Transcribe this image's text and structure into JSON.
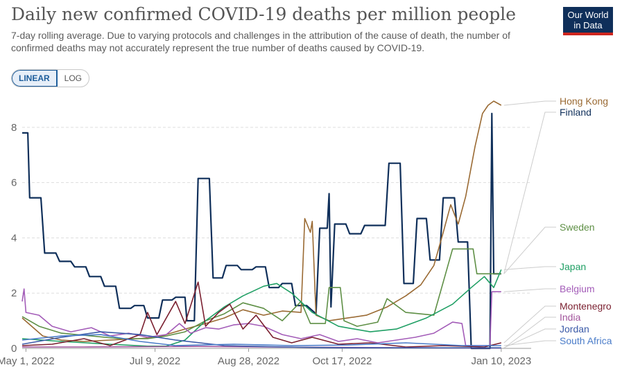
{
  "header": {
    "title": "Daily new confirmed COVID-19 deaths per million people",
    "subtitle": "7-day rolling average. Due to varying protocols and challenges in the attribution of the cause of death, the number of confirmed deaths may not accurately represent the true number of deaths caused by COVID-19.",
    "logo_line1": "Our World",
    "logo_line2": "in Data"
  },
  "scale_toggle": {
    "linear": "LINEAR",
    "log": "LOG",
    "selected": "linear"
  },
  "chart_data": {
    "type": "line",
    "title": "Daily new confirmed COVID-19 deaths per million people",
    "x_axis": {
      "type": "date",
      "range": [
        "2022-04-29",
        "2023-01-26"
      ],
      "ticks": [
        {
          "date": "2022-05-01",
          "label": "May 1, 2022"
        },
        {
          "date": "2022-07-09",
          "label": "Jul 9, 2022"
        },
        {
          "date": "2022-08-28",
          "label": "Aug 28, 2022"
        },
        {
          "date": "2022-10-17",
          "label": "Oct 17, 2022"
        },
        {
          "date": "2023-01-10",
          "label": "Jan 10, 2023"
        }
      ]
    },
    "y_axis": {
      "range": [
        0,
        9
      ],
      "ticks": [
        0,
        2,
        4,
        6,
        8
      ],
      "scale": "linear",
      "grid": true
    },
    "legend_placement": "right",
    "series": [
      {
        "name": "Finland",
        "color": "#0f2f5a",
        "points": [
          [
            "2022-04-29",
            7.8
          ],
          [
            "2022-05-02",
            7.8
          ],
          [
            "2022-05-03",
            5.45
          ],
          [
            "2022-05-09",
            5.45
          ],
          [
            "2022-05-11",
            3.45
          ],
          [
            "2022-05-17",
            3.45
          ],
          [
            "2022-05-19",
            3.15
          ],
          [
            "2022-05-25",
            3.15
          ],
          [
            "2022-05-27",
            2.95
          ],
          [
            "2022-06-02",
            2.95
          ],
          [
            "2022-06-04",
            2.6
          ],
          [
            "2022-06-10",
            2.6
          ],
          [
            "2022-06-12",
            2.25
          ],
          [
            "2022-06-18",
            2.25
          ],
          [
            "2022-06-20",
            1.45
          ],
          [
            "2022-06-26",
            1.45
          ],
          [
            "2022-06-28",
            1.55
          ],
          [
            "2022-07-03",
            1.55
          ],
          [
            "2022-07-05",
            1.1
          ],
          [
            "2022-07-11",
            1.1
          ],
          [
            "2022-07-13",
            1.75
          ],
          [
            "2022-07-18",
            1.75
          ],
          [
            "2022-07-20",
            1.85
          ],
          [
            "2022-07-25",
            1.85
          ],
          [
            "2022-07-26",
            1.0
          ],
          [
            "2022-07-30",
            1.0
          ],
          [
            "2022-08-01",
            6.15
          ],
          [
            "2022-08-07",
            6.15
          ],
          [
            "2022-08-09",
            2.55
          ],
          [
            "2022-08-14",
            2.55
          ],
          [
            "2022-08-16",
            3.0
          ],
          [
            "2022-08-22",
            3.0
          ],
          [
            "2022-08-24",
            2.85
          ],
          [
            "2022-08-30",
            2.85
          ],
          [
            "2022-09-01",
            2.95
          ],
          [
            "2022-09-06",
            2.95
          ],
          [
            "2022-09-08",
            2.2
          ],
          [
            "2022-09-13",
            2.2
          ],
          [
            "2022-09-15",
            2.35
          ],
          [
            "2022-09-20",
            2.35
          ],
          [
            "2022-09-22",
            1.55
          ],
          [
            "2022-09-26",
            1.55
          ],
          [
            "2022-09-28",
            1.55
          ],
          [
            "2022-10-03",
            1.25
          ],
          [
            "2022-10-05",
            4.35
          ],
          [
            "2022-10-09",
            4.35
          ],
          [
            "2022-10-10",
            5.6
          ],
          [
            "2022-10-11",
            1.5
          ],
          [
            "2022-10-13",
            4.5
          ],
          [
            "2022-10-19",
            4.5
          ],
          [
            "2022-10-21",
            4.15
          ],
          [
            "2022-10-27",
            4.15
          ],
          [
            "2022-10-29",
            4.45
          ],
          [
            "2022-11-09",
            4.45
          ],
          [
            "2022-11-11",
            6.7
          ],
          [
            "2022-11-17",
            6.7
          ],
          [
            "2022-11-19",
            2.35
          ],
          [
            "2022-11-24",
            2.35
          ],
          [
            "2022-11-26",
            4.7
          ],
          [
            "2022-12-01",
            4.7
          ],
          [
            "2022-12-03",
            3.2
          ],
          [
            "2022-12-08",
            3.2
          ],
          [
            "2022-12-10",
            5.45
          ],
          [
            "2022-12-16",
            5.45
          ],
          [
            "2022-12-18",
            3.85
          ],
          [
            "2022-12-23",
            3.85
          ],
          [
            "2022-12-25",
            0
          ],
          [
            "2023-01-04",
            0
          ],
          [
            "2023-01-05",
            8.5
          ],
          [
            "2023-01-06",
            2.7
          ],
          [
            "2023-01-10",
            2.7
          ]
        ]
      },
      {
        "name": "Hong Kong",
        "color": "#9a6a33",
        "points": [
          [
            "2022-04-29",
            1.1
          ],
          [
            "2022-05-10",
            0.45
          ],
          [
            "2022-05-20",
            0.3
          ],
          [
            "2022-06-01",
            0.25
          ],
          [
            "2022-06-15",
            0.3
          ],
          [
            "2022-06-30",
            0.35
          ],
          [
            "2022-07-10",
            0.4
          ],
          [
            "2022-07-25",
            0.7
          ],
          [
            "2022-08-05",
            0.9
          ],
          [
            "2022-08-15",
            1.1
          ],
          [
            "2022-08-25",
            1.4
          ],
          [
            "2022-09-05",
            1.2
          ],
          [
            "2022-09-15",
            1.35
          ],
          [
            "2022-09-25",
            1.3
          ],
          [
            "2022-09-27",
            4.7
          ],
          [
            "2022-09-30",
            4.2
          ],
          [
            "2022-10-01",
            4.6
          ],
          [
            "2022-10-03",
            1.2
          ],
          [
            "2022-10-10",
            1.0
          ],
          [
            "2022-10-20",
            1.1
          ],
          [
            "2022-10-30",
            1.2
          ],
          [
            "2022-11-10",
            1.5
          ],
          [
            "2022-11-20",
            1.9
          ],
          [
            "2022-11-28",
            2.3
          ],
          [
            "2022-12-05",
            3.0
          ],
          [
            "2022-12-10",
            4.2
          ],
          [
            "2022-12-14",
            5.2
          ],
          [
            "2022-12-18",
            4.5
          ],
          [
            "2022-12-22",
            5.5
          ],
          [
            "2022-12-27",
            7.3
          ],
          [
            "2022-12-31",
            8.5
          ],
          [
            "2023-01-03",
            8.8
          ],
          [
            "2023-01-06",
            8.95
          ],
          [
            "2023-01-10",
            8.8
          ]
        ]
      },
      {
        "name": "Sweden",
        "color": "#5e8f45",
        "points": [
          [
            "2022-04-29",
            1.15
          ],
          [
            "2022-05-08",
            0.8
          ],
          [
            "2022-05-20",
            0.55
          ],
          [
            "2022-06-05",
            0.45
          ],
          [
            "2022-06-20",
            0.35
          ],
          [
            "2022-07-05",
            0.35
          ],
          [
            "2022-07-15",
            0.45
          ],
          [
            "2022-07-25",
            0.6
          ],
          [
            "2022-08-05",
            1.0
          ],
          [
            "2022-08-15",
            1.25
          ],
          [
            "2022-08-25",
            1.65
          ],
          [
            "2022-09-05",
            1.45
          ],
          [
            "2022-09-15",
            1.0
          ],
          [
            "2022-09-25",
            1.7
          ],
          [
            "2022-09-30",
            0.9
          ],
          [
            "2022-10-08",
            0.9
          ],
          [
            "2022-10-10",
            2.2
          ],
          [
            "2022-10-16",
            2.2
          ],
          [
            "2022-10-18",
            1.0
          ],
          [
            "2022-10-25",
            0.8
          ],
          [
            "2022-11-05",
            0.95
          ],
          [
            "2022-11-10",
            1.8
          ],
          [
            "2022-11-20",
            1.3
          ],
          [
            "2022-12-05",
            1.2
          ],
          [
            "2022-12-15",
            3.6
          ],
          [
            "2022-12-26",
            3.6
          ],
          [
            "2022-12-28",
            2.7
          ],
          [
            "2023-01-10",
            2.7
          ]
        ]
      },
      {
        "name": "Japan",
        "color": "#1f9f64",
        "points": [
          [
            "2022-04-29",
            0.35
          ],
          [
            "2022-05-20",
            0.25
          ],
          [
            "2022-06-15",
            0.15
          ],
          [
            "2022-07-05",
            0.08
          ],
          [
            "2022-07-15",
            0.08
          ],
          [
            "2022-07-25",
            0.3
          ],
          [
            "2022-08-05",
            1.0
          ],
          [
            "2022-08-15",
            1.5
          ],
          [
            "2022-08-25",
            1.9
          ],
          [
            "2022-09-05",
            2.25
          ],
          [
            "2022-09-12",
            2.35
          ],
          [
            "2022-09-20",
            2.0
          ],
          [
            "2022-10-01",
            1.3
          ],
          [
            "2022-10-15",
            0.8
          ],
          [
            "2022-11-01",
            0.6
          ],
          [
            "2022-11-15",
            0.7
          ],
          [
            "2022-12-01",
            1.1
          ],
          [
            "2022-12-15",
            1.6
          ],
          [
            "2022-12-25",
            2.2
          ],
          [
            "2023-01-01",
            2.6
          ],
          [
            "2023-01-06",
            2.2
          ],
          [
            "2023-01-10",
            2.85
          ]
        ]
      },
      {
        "name": "Belgium",
        "color": "#a35cb8",
        "points": [
          [
            "2022-04-29",
            1.7
          ],
          [
            "2022-04-30",
            2.15
          ],
          [
            "2022-05-01",
            1.3
          ],
          [
            "2022-05-08",
            1.2
          ],
          [
            "2022-05-15",
            0.8
          ],
          [
            "2022-05-25",
            0.6
          ],
          [
            "2022-06-05",
            0.75
          ],
          [
            "2022-06-15",
            0.45
          ],
          [
            "2022-06-25",
            0.55
          ],
          [
            "2022-07-05",
            0.4
          ],
          [
            "2022-07-15",
            0.5
          ],
          [
            "2022-07-22",
            0.9
          ],
          [
            "2022-07-28",
            0.55
          ],
          [
            "2022-08-05",
            0.75
          ],
          [
            "2022-08-12",
            0.7
          ],
          [
            "2022-08-20",
            0.85
          ],
          [
            "2022-08-28",
            0.9
          ],
          [
            "2022-09-05",
            0.8
          ],
          [
            "2022-09-15",
            0.5
          ],
          [
            "2022-09-25",
            0.35
          ],
          [
            "2022-10-05",
            0.5
          ],
          [
            "2022-10-15",
            0.25
          ],
          [
            "2022-10-25",
            0.35
          ],
          [
            "2022-11-05",
            0.2
          ],
          [
            "2022-11-15",
            0.3
          ],
          [
            "2022-11-25",
            0.4
          ],
          [
            "2022-12-05",
            0.55
          ],
          [
            "2022-12-15",
            0.95
          ],
          [
            "2022-12-20",
            0.9
          ],
          [
            "2022-12-22",
            0.1
          ],
          [
            "2023-01-04",
            0.1
          ],
          [
            "2023-01-05",
            2.05
          ],
          [
            "2023-01-10",
            2.05
          ]
        ]
      },
      {
        "name": "Montenegro",
        "color": "#7a1f2f",
        "points": [
          [
            "2022-04-29",
            0.1
          ],
          [
            "2022-05-15",
            0.15
          ],
          [
            "2022-06-01",
            0.35
          ],
          [
            "2022-06-15",
            0.1
          ],
          [
            "2022-07-01",
            0.5
          ],
          [
            "2022-07-05",
            1.3
          ],
          [
            "2022-07-10",
            0.5
          ],
          [
            "2022-07-20",
            1.7
          ],
          [
            "2022-07-25",
            0.9
          ],
          [
            "2022-08-01",
            2.4
          ],
          [
            "2022-08-05",
            0.8
          ],
          [
            "2022-08-12",
            1.3
          ],
          [
            "2022-08-18",
            1.6
          ],
          [
            "2022-08-25",
            0.7
          ],
          [
            "2022-09-01",
            1.2
          ],
          [
            "2022-09-10",
            0.4
          ],
          [
            "2022-09-20",
            0.2
          ],
          [
            "2022-10-01",
            0.4
          ],
          [
            "2022-10-15",
            0.15
          ],
          [
            "2022-11-01",
            0.2
          ],
          [
            "2022-11-20",
            0.05
          ],
          [
            "2022-12-10",
            0.1
          ],
          [
            "2023-01-01",
            0.05
          ],
          [
            "2023-01-10",
            0.2
          ]
        ]
      },
      {
        "name": "India",
        "color": "#a2559c",
        "points": [
          [
            "2022-04-29",
            0.05
          ],
          [
            "2022-06-01",
            0.05
          ],
          [
            "2022-08-01",
            0.07
          ],
          [
            "2022-10-01",
            0.04
          ],
          [
            "2022-12-01",
            0.02
          ],
          [
            "2023-01-10",
            0.01
          ]
        ]
      },
      {
        "name": "Jordan",
        "color": "#3b5aa8",
        "points": [
          [
            "2022-04-29",
            0.15
          ],
          [
            "2022-05-20",
            0.4
          ],
          [
            "2022-06-10",
            0.6
          ],
          [
            "2022-07-01",
            0.5
          ],
          [
            "2022-07-20",
            0.3
          ],
          [
            "2022-08-15",
            0.1
          ],
          [
            "2022-09-15",
            0.05
          ],
          [
            "2022-10-15",
            0.02
          ],
          [
            "2022-12-01",
            0.02
          ],
          [
            "2023-01-10",
            0.02
          ]
        ]
      },
      {
        "name": "South Africa",
        "color": "#4a7cc9",
        "points": [
          [
            "2022-04-29",
            0.3
          ],
          [
            "2022-05-20",
            0.45
          ],
          [
            "2022-06-10",
            0.5
          ],
          [
            "2022-07-01",
            0.25
          ],
          [
            "2022-07-20",
            0.1
          ],
          [
            "2022-08-20",
            0.15
          ],
          [
            "2022-09-20",
            0.1
          ],
          [
            "2022-10-20",
            0.12
          ],
          [
            "2022-11-20",
            0.2
          ],
          [
            "2022-12-20",
            0.1
          ],
          [
            "2023-01-10",
            0.1
          ]
        ]
      }
    ]
  }
}
